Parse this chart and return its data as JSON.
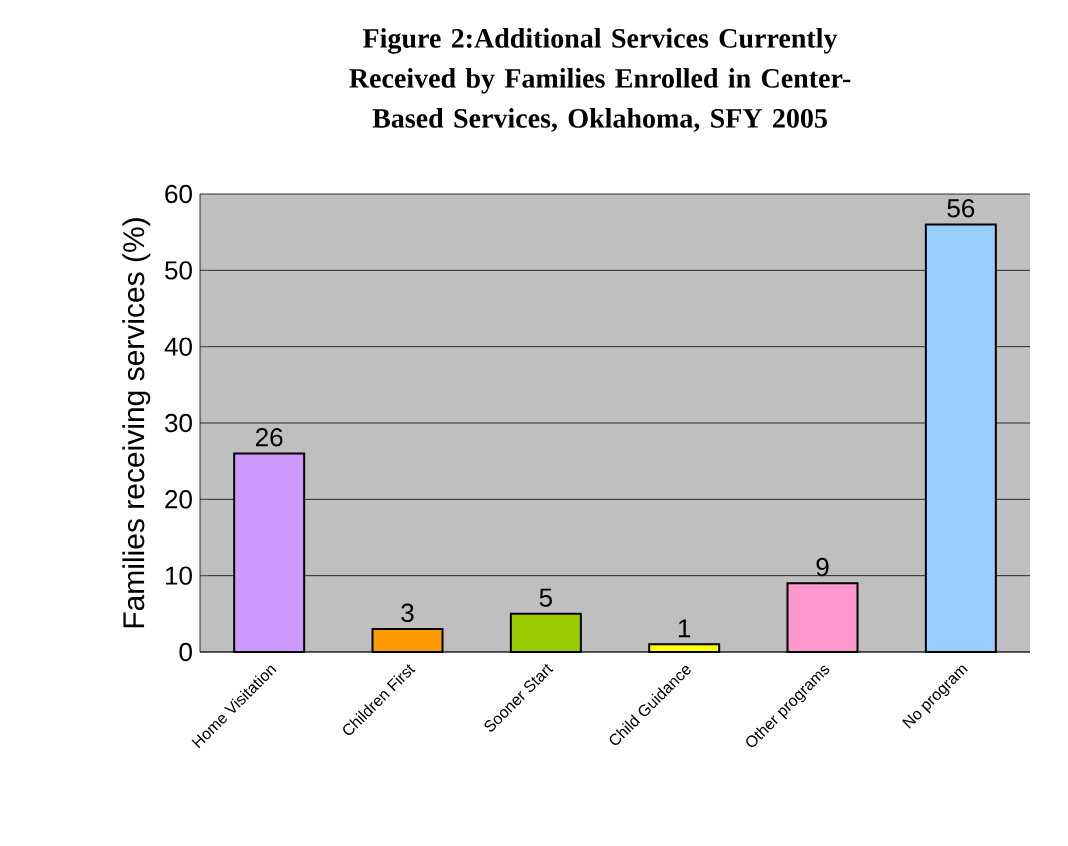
{
  "chart_data": {
    "type": "bar",
    "title": "Figure 2:Additional Services Currently Received by Families Enrolled in Center-Based Services, Oklahoma, SFY 2005",
    "ylabel": "Families receiving services (%)",
    "categories": [
      "Home Visitation",
      "Children First",
      "Sooner Start",
      "Child Guidance",
      "Other programs",
      "No program"
    ],
    "values": [
      26,
      3,
      5,
      1,
      9,
      56
    ],
    "colors": [
      "#cc99ff",
      "#ff9900",
      "#99cc00",
      "#ffff00",
      "#ff99cc",
      "#99ccff"
    ],
    "ylim": [
      0,
      60
    ],
    "yticks": [
      0,
      10,
      20,
      30,
      40,
      50,
      60
    ],
    "grid": "y",
    "data_labels": true
  }
}
